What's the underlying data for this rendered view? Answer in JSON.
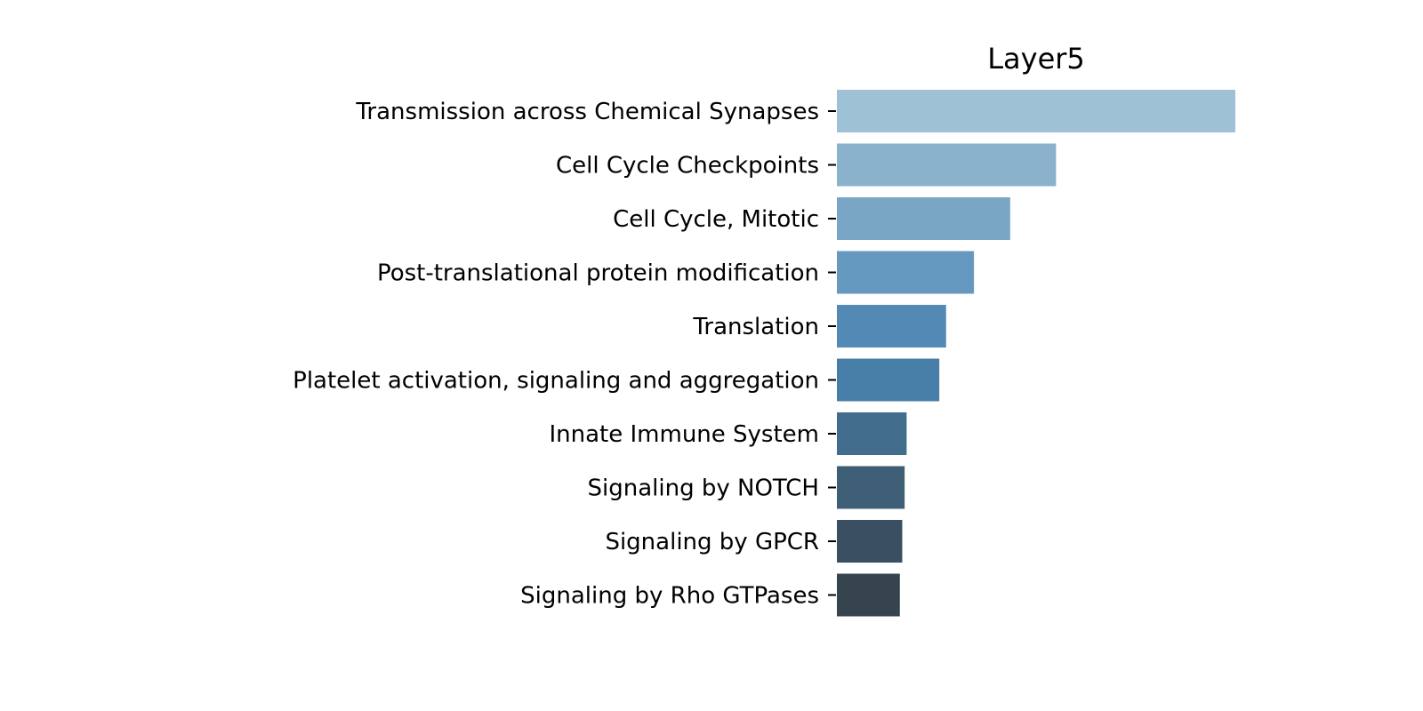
{
  "chart_data": {
    "type": "bar",
    "orientation": "horizontal",
    "title": "Layer5",
    "xlabel": "",
    "ylabel": "",
    "grid": false,
    "categories": [
      "Transmission across Chemical Synapses",
      "Cell Cycle Checkpoints",
      "Cell Cycle, Mitotic",
      "Post-translational protein modification",
      "Translation",
      "Platelet activation, signaling and aggregation",
      "Innate Immune System",
      "Signaling by NOTCH",
      "Signaling by GPCR",
      "Signaling by Rho GTPases"
    ],
    "values": [
      100,
      55,
      43.5,
      34.4,
      27.4,
      25.7,
      17.5,
      17.0,
      16.4,
      15.8
    ],
    "xlim": [
      0,
      100
    ],
    "colors": [
      "#9fc1d6",
      "#8ab2cd",
      "#79a6c5",
      "#6699bf",
      "#528ab5",
      "#467ea8",
      "#426d8d",
      "#3e5e76",
      "#3a4f61",
      "#36444d"
    ]
  }
}
